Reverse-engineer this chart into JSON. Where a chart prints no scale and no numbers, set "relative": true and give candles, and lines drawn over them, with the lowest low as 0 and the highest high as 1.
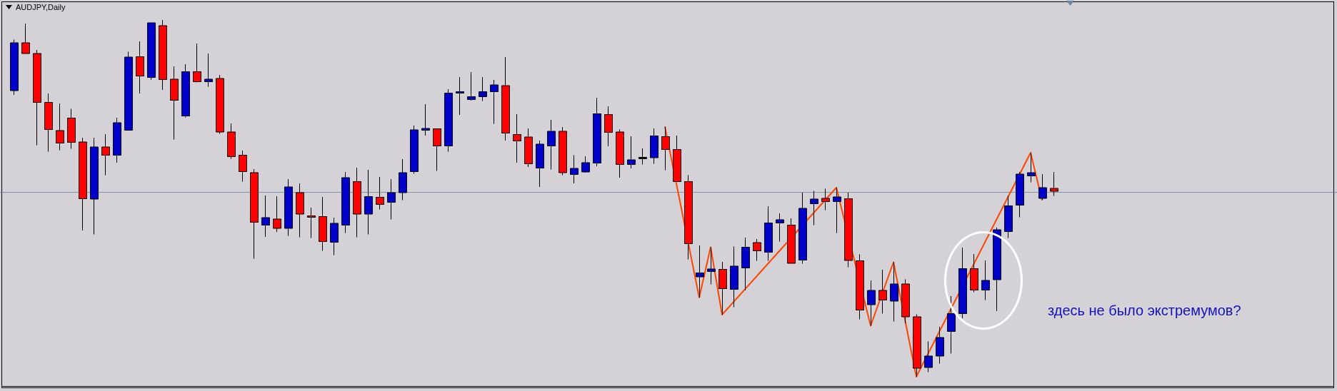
{
  "chart_data": {
    "type": "candlestick",
    "title": "AUDJPY,Daily",
    "relative": true,
    "categories": [
      null,
      null,
      null,
      null,
      null,
      null,
      null,
      null,
      null,
      null,
      null,
      null,
      null,
      null,
      null,
      null,
      null,
      null,
      null,
      null,
      null,
      null,
      null,
      null,
      null,
      null,
      null,
      null,
      null,
      null,
      null,
      null,
      null,
      null,
      null,
      null,
      null,
      null,
      null,
      null,
      null,
      null,
      null,
      null,
      null,
      null,
      null,
      null,
      null,
      null,
      null,
      null,
      null,
      null,
      null,
      null,
      null,
      null,
      null,
      null,
      null,
      null,
      null,
      null,
      null,
      null,
      null,
      null,
      null,
      null,
      null,
      null,
      null,
      null,
      null,
      null,
      null,
      null,
      null,
      null,
      null,
      null,
      null,
      null,
      null,
      null,
      null,
      null,
      null,
      null,
      null,
      null
    ],
    "ohlc": [
      [
        0.802,
        0.945,
        0.79,
        0.936
      ],
      [
        0.936,
        0.99,
        0.906,
        0.906
      ],
      [
        0.906,
        0.916,
        0.649,
        0.769
      ],
      [
        0.769,
        0.794,
        0.631,
        0.693
      ],
      [
        0.69,
        0.766,
        0.635,
        0.655
      ],
      [
        0.725,
        0.751,
        0.639,
        0.657
      ],
      [
        0.658,
        0.67,
        0.41,
        0.499
      ],
      [
        0.498,
        0.67,
        0.399,
        0.644
      ],
      [
        0.644,
        0.68,
        0.565,
        0.621
      ],
      [
        0.621,
        0.726,
        0.6,
        0.712
      ],
      [
        0.691,
        0.911,
        0.691,
        0.896
      ],
      [
        0.897,
        0.94,
        0.794,
        0.843
      ],
      [
        0.839,
        0.992,
        0.832,
        0.992
      ],
      [
        0.984,
        1.0,
        0.804,
        0.833
      ],
      [
        0.834,
        0.87,
        0.665,
        0.775
      ],
      [
        0.731,
        0.876,
        0.727,
        0.855
      ],
      [
        0.855,
        0.934,
        0.825,
        0.827
      ],
      [
        0.827,
        0.906,
        0.813,
        0.834
      ],
      [
        0.836,
        0.846,
        0.681,
        0.686
      ],
      [
        0.686,
        0.71,
        0.611,
        0.617
      ],
      [
        0.621,
        0.634,
        0.547,
        0.575
      ],
      [
        0.572,
        0.582,
        0.331,
        0.433
      ],
      [
        0.425,
        0.508,
        0.392,
        0.446
      ],
      [
        0.442,
        0.506,
        0.406,
        0.416
      ],
      [
        0.416,
        0.554,
        0.395,
        0.532
      ],
      [
        0.516,
        0.542,
        0.391,
        0.456
      ],
      [
        0.451,
        0.474,
        0.389,
        0.447
      ],
      [
        0.449,
        0.504,
        0.353,
        0.379
      ],
      [
        0.377,
        0.446,
        0.341,
        0.43
      ],
      [
        0.425,
        0.574,
        0.403,
        0.558
      ],
      [
        0.547,
        0.586,
        0.391,
        0.456
      ],
      [
        0.456,
        0.58,
        0.399,
        0.505
      ],
      [
        0.503,
        0.56,
        0.469,
        0.483
      ],
      [
        0.489,
        0.554,
        0.441,
        0.516
      ],
      [
        0.516,
        0.61,
        0.495,
        0.572
      ],
      [
        0.575,
        0.704,
        0.569,
        0.692
      ],
      [
        0.691,
        0.764,
        0.676,
        0.696
      ],
      [
        0.695,
        0.696,
        0.577,
        0.647
      ],
      [
        0.647,
        0.806,
        0.631,
        0.795
      ],
      [
        0.795,
        0.84,
        0.734,
        0.799
      ],
      [
        0.777,
        0.854,
        0.774,
        0.785
      ],
      [
        0.785,
        0.84,
        0.773,
        0.799
      ],
      [
        0.799,
        0.832,
        0.709,
        0.818
      ],
      [
        0.816,
        0.896,
        0.662,
        0.683
      ],
      [
        0.679,
        0.736,
        0.6,
        0.661
      ],
      [
        0.672,
        0.696,
        0.588,
        0.597
      ],
      [
        0.585,
        0.662,
        0.532,
        0.652
      ],
      [
        0.647,
        0.72,
        0.581,
        0.688
      ],
      [
        0.688,
        0.7,
        0.565,
        0.572
      ],
      [
        0.567,
        0.621,
        0.542,
        0.584
      ],
      [
        0.574,
        0.618,
        0.572,
        0.6
      ],
      [
        0.599,
        0.782,
        0.59,
        0.737
      ],
      [
        0.735,
        0.758,
        0.646,
        0.685
      ],
      [
        0.686,
        0.693,
        0.558,
        0.595
      ],
      [
        0.595,
        0.674,
        0.584,
        0.608
      ],
      [
        0.613,
        0.64,
        0.595,
        0.613
      ],
      [
        0.614,
        0.696,
        0.597,
        0.675
      ],
      [
        0.673,
        0.701,
        0.579,
        0.637
      ],
      [
        0.637,
        0.676,
        0.547,
        0.547
      ],
      [
        0.547,
        0.565,
        0.329,
        0.373
      ],
      [
        0.28,
        0.368,
        0.222,
        0.291
      ],
      [
        0.295,
        0.363,
        0.259,
        0.302
      ],
      [
        0.301,
        0.322,
        0.174,
        0.247
      ],
      [
        0.245,
        0.365,
        0.195,
        0.31
      ],
      [
        0.305,
        0.39,
        0.242,
        0.363
      ],
      [
        0.376,
        0.386,
        0.325,
        0.353
      ],
      [
        0.349,
        0.478,
        0.325,
        0.431
      ],
      [
        0.431,
        0.458,
        0.379,
        0.44
      ],
      [
        0.425,
        0.444,
        0.318,
        0.318
      ],
      [
        0.327,
        0.516,
        0.317,
        0.472
      ],
      [
        0.485,
        0.521,
        0.425,
        0.498
      ],
      [
        0.5,
        0.527,
        0.467,
        0.491
      ],
      [
        0.491,
        0.53,
        0.403,
        0.504
      ],
      [
        0.499,
        0.516,
        0.307,
        0.326
      ],
      [
        0.325,
        0.343,
        0.161,
        0.187
      ],
      [
        0.202,
        0.27,
        0.143,
        0.242
      ],
      [
        0.242,
        0.3,
        0.177,
        0.215
      ],
      [
        0.212,
        0.321,
        0.155,
        0.26
      ],
      [
        0.26,
        0.273,
        0.15,
        0.168
      ],
      [
        0.168,
        0.175,
        0,
        0.024
      ],
      [
        0.026,
        0.099,
        0.013,
        0.058
      ],
      [
        0.058,
        0.14,
        0.037,
        0.11
      ],
      [
        0.127,
        0.226,
        0.065,
        0.177
      ],
      [
        0.177,
        0.362,
        0.164,
        0.303
      ],
      [
        0.303,
        0.344,
        0.237,
        0.243
      ],
      [
        0.243,
        0.326,
        0.215,
        0.27
      ],
      [
        0.272,
        0.418,
        0.184,
        0.412
      ],
      [
        0.407,
        0.507,
        0.389,
        0.479
      ],
      [
        0.481,
        0.574,
        0.447,
        0.568
      ],
      [
        0.563,
        0.628,
        0.545,
        0.572
      ],
      [
        0.5,
        0.568,
        0.495,
        0.53
      ],
      [
        0.528,
        0.574,
        0.507,
        0.52
      ]
    ],
    "colors": [
      "#0000cc",
      "#ff0000",
      "#ff0000",
      "#ff0000",
      "#ff0000",
      "#ff0000",
      "#ff0000",
      "#0000cc",
      "#ff0000",
      "#0000cc",
      "#0000cc",
      "#ff0000",
      "#0000cc",
      "#ff0000",
      "#ff0000",
      "#0000cc",
      "#ff0000",
      "#0000cc",
      "#ff0000",
      "#ff0000",
      "#ff0000",
      "#ff0000",
      "#0000cc",
      "#ff0000",
      "#0000cc",
      "#ff0000",
      "#ff0000",
      "#ff0000",
      "#0000cc",
      "#0000cc",
      "#ff0000",
      "#0000cc",
      "#ff0000",
      "#0000cc",
      "#0000cc",
      "#0000cc",
      "#0000cc",
      "#ff0000",
      "#0000cc",
      "#0000cc",
      "#0000cc",
      "#0000cc",
      "#0000cc",
      "#ff0000",
      "#ff0000",
      "#ff0000",
      "#0000cc",
      "#0000cc",
      "#ff0000",
      "#0000cc",
      "#0000cc",
      "#0000cc",
      "#ff0000",
      "#ff0000",
      "#0000cc",
      "#000000",
      "#0000cc",
      "#ff0000",
      "#ff0000",
      "#ff0000",
      "#0000cc",
      "#0000cc",
      "#ff0000",
      "#0000cc",
      "#0000cc",
      "#ff0000",
      "#0000cc",
      "#0000cc",
      "#ff0000",
      "#0000cc",
      "#0000cc",
      "#ff0000",
      "#0000cc",
      "#ff0000",
      "#ff0000",
      "#0000cc",
      "#ff0000",
      "#0000cc",
      "#ff0000",
      "#ff0000",
      "#0000cc",
      "#0000cc",
      "#0000cc",
      "#0000cc",
      "#ff0000",
      "#0000cc",
      "#0000cc",
      "#0000cc",
      "#0000cc",
      "#0000cc",
      "#0000cc",
      "#ff0000"
    ],
    "series": [
      {
        "type": "line",
        "color": "#ff4500",
        "values": [
          null,
          null,
          null,
          null,
          null,
          null,
          null,
          null,
          null,
          null,
          null,
          null,
          null,
          null,
          null,
          null,
          null,
          null,
          null,
          null,
          null,
          null,
          null,
          null,
          null,
          null,
          null,
          null,
          null,
          null,
          null,
          null,
          null,
          null,
          null,
          null,
          null,
          null,
          null,
          null,
          null,
          null,
          null,
          null,
          null,
          null,
          null,
          null,
          null,
          null,
          null,
          null,
          null,
          null,
          null,
          null,
          null,
          0.701,
          null,
          null,
          0.222,
          0.363,
          0.174,
          null,
          null,
          null,
          null,
          null,
          null,
          null,
          null,
          null,
          0.53,
          null,
          null,
          0.143,
          null,
          0.321,
          null,
          0,
          null,
          null,
          null,
          null,
          null,
          null,
          null,
          null,
          null,
          0.628,
          0.495,
          null
        ]
      }
    ],
    "ref_lines": [
      {
        "axis": "y",
        "value": 0.519,
        "color": "#7b93a8"
      }
    ],
    "annotations": [
      "здесь не было экстремумов?"
    ]
  }
}
